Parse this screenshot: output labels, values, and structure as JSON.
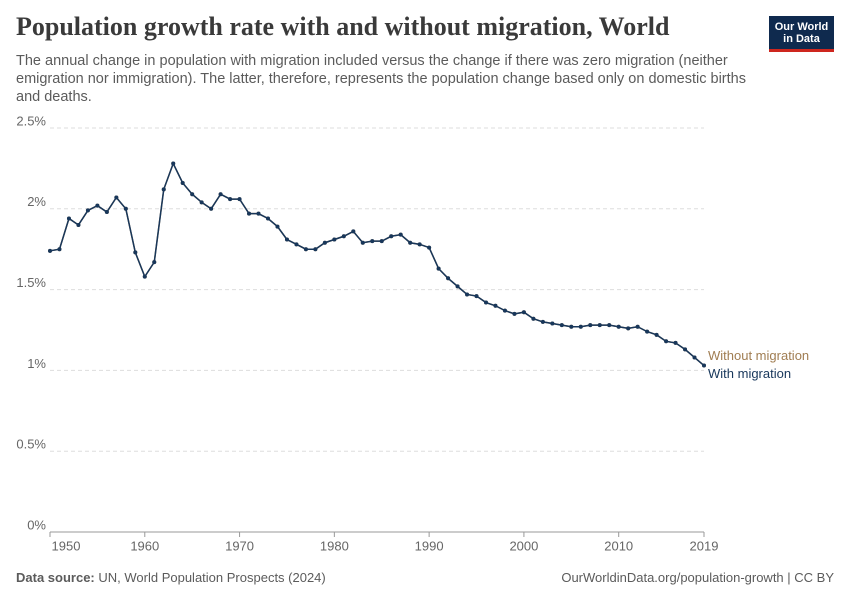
{
  "chart_data": {
    "type": "line",
    "title": "Population growth rate with and without migration, World",
    "subtitle": "The annual change in population with migration included versus the change if there was zero migration (neither emigration nor immigration). The latter, therefore, represents the population change based only on domestic births and deaths.",
    "logo": [
      "Our World",
      "in Data"
    ],
    "source_label": "Data source:",
    "source": "UN, World Population Prospects (2024)",
    "footer_right": "OurWorldinData.org/population-growth | CC BY",
    "x": [
      1950,
      1951,
      1952,
      1953,
      1954,
      1955,
      1956,
      1957,
      1958,
      1959,
      1960,
      1961,
      1962,
      1963,
      1964,
      1965,
      1966,
      1967,
      1968,
      1969,
      1970,
      1971,
      1972,
      1973,
      1974,
      1975,
      1976,
      1977,
      1978,
      1979,
      1980,
      1981,
      1982,
      1983,
      1984,
      1985,
      1986,
      1987,
      1988,
      1989,
      1990,
      1991,
      1992,
      1993,
      1994,
      1995,
      1996,
      1997,
      1998,
      1999,
      2000,
      2001,
      2002,
      2003,
      2004,
      2005,
      2006,
      2007,
      2008,
      2009,
      2010,
      2011,
      2012,
      2013,
      2014,
      2015,
      2016,
      2017,
      2018,
      2019
    ],
    "series": [
      {
        "name": "Without migration",
        "color": "#a07d52",
        "values": [
          1.74,
          1.75,
          1.94,
          1.9,
          1.99,
          2.02,
          1.98,
          2.07,
          2.0,
          1.73,
          1.58,
          1.67,
          2.12,
          2.28,
          2.16,
          2.09,
          2.04,
          2.0,
          2.09,
          2.06,
          2.06,
          1.97,
          1.97,
          1.94,
          1.89,
          1.81,
          1.78,
          1.75,
          1.75,
          1.79,
          1.81,
          1.83,
          1.86,
          1.79,
          1.8,
          1.8,
          1.83,
          1.84,
          1.79,
          1.78,
          1.76,
          1.63,
          1.57,
          1.52,
          1.47,
          1.46,
          1.42,
          1.4,
          1.37,
          1.35,
          1.36,
          1.32,
          1.3,
          1.29,
          1.28,
          1.27,
          1.27,
          1.28,
          1.28,
          1.28,
          1.27,
          1.26,
          1.27,
          1.24,
          1.22,
          1.18,
          1.17,
          1.13,
          1.08,
          1.03
        ]
      },
      {
        "name": "With migration",
        "color": "#18375b",
        "values": [
          1.74,
          1.75,
          1.94,
          1.9,
          1.99,
          2.02,
          1.98,
          2.07,
          2.0,
          1.73,
          1.58,
          1.67,
          2.12,
          2.28,
          2.16,
          2.09,
          2.04,
          2.0,
          2.09,
          2.06,
          2.06,
          1.97,
          1.97,
          1.94,
          1.89,
          1.81,
          1.78,
          1.75,
          1.75,
          1.79,
          1.81,
          1.83,
          1.86,
          1.79,
          1.8,
          1.8,
          1.83,
          1.84,
          1.79,
          1.78,
          1.76,
          1.63,
          1.57,
          1.52,
          1.47,
          1.46,
          1.42,
          1.4,
          1.37,
          1.35,
          1.36,
          1.32,
          1.3,
          1.29,
          1.28,
          1.27,
          1.27,
          1.28,
          1.28,
          1.28,
          1.27,
          1.26,
          1.27,
          1.24,
          1.22,
          1.18,
          1.17,
          1.13,
          1.08,
          1.03
        ]
      }
    ],
    "xlim": [
      1950,
      2019
    ],
    "xticks": [
      1950,
      1960,
      1970,
      1980,
      1990,
      2000,
      2010,
      2019
    ],
    "ylim": [
      0,
      2.5
    ],
    "yticks": [
      {
        "value": 0,
        "label": "0%"
      },
      {
        "value": 0.5,
        "label": "0.5%"
      },
      {
        "value": 1,
        "label": "1%"
      },
      {
        "value": 1.5,
        "label": "1.5%"
      },
      {
        "value": 2,
        "label": "2%"
      },
      {
        "value": 2.5,
        "label": "2.5%"
      }
    ],
    "grid": true
  }
}
